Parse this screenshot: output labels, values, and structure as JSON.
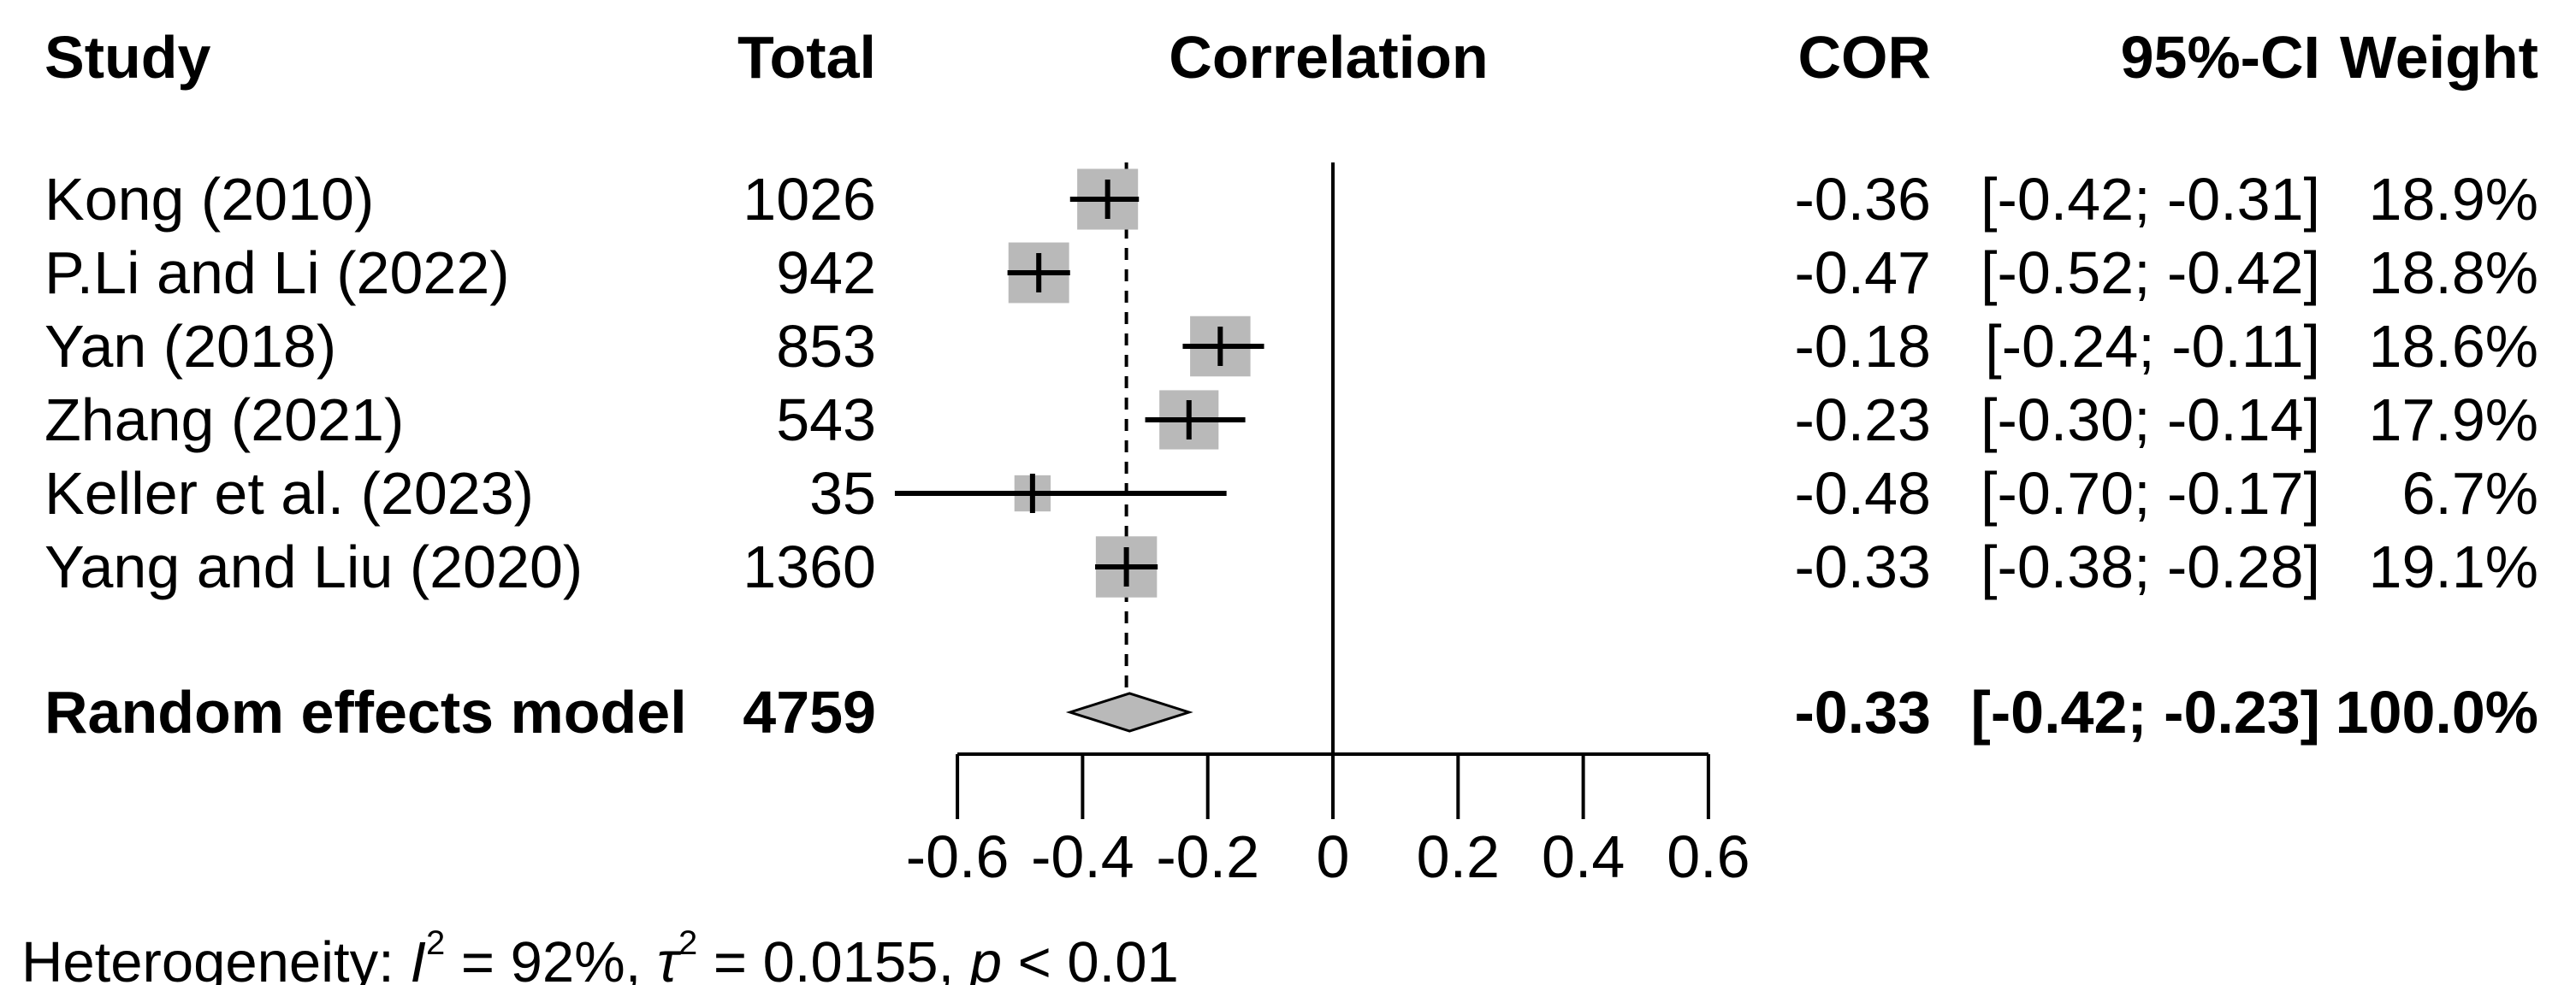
{
  "header": {
    "study": "Study",
    "total": "Total",
    "correlation": "Correlation",
    "cor": "COR",
    "ci": "95%-CI",
    "weight": "Weight"
  },
  "studies": [
    {
      "name": "Kong (2010)",
      "total": "1026",
      "cor": -0.36,
      "ci_low": -0.42,
      "ci_high": -0.31,
      "cor_label": "-0.36",
      "ci_label": "[-0.42; -0.31]",
      "weight": 18.9,
      "weight_label": "18.9%"
    },
    {
      "name": "P.Li and Li (2022)",
      "total": "942",
      "cor": -0.47,
      "ci_low": -0.52,
      "ci_high": -0.42,
      "cor_label": "-0.47",
      "ci_label": "[-0.52; -0.42]",
      "weight": 18.8,
      "weight_label": "18.8%"
    },
    {
      "name": "Yan (2018)",
      "total": "853",
      "cor": -0.18,
      "ci_low": -0.24,
      "ci_high": -0.11,
      "cor_label": "-0.18",
      "ci_label": "[-0.24; -0.11]",
      "weight": 18.6,
      "weight_label": "18.6%"
    },
    {
      "name": "Zhang (2021)",
      "total": "543",
      "cor": -0.23,
      "ci_low": -0.3,
      "ci_high": -0.14,
      "cor_label": "-0.23",
      "ci_label": "[-0.30; -0.14]",
      "weight": 17.9,
      "weight_label": "17.9%"
    },
    {
      "name": "Keller et al. (2023)",
      "total": "35",
      "cor": -0.48,
      "ci_low": -0.7,
      "ci_high": -0.17,
      "cor_label": "-0.48",
      "ci_label": "[-0.70; -0.17]",
      "weight": 6.7,
      "weight_label": "6.7%"
    },
    {
      "name": "Yang and Liu (2020)",
      "total": "1360",
      "cor": -0.33,
      "ci_low": -0.38,
      "ci_high": -0.28,
      "cor_label": "-0.33",
      "ci_label": "[-0.38; -0.28]",
      "weight": 19.1,
      "weight_label": "19.1%"
    }
  ],
  "summary": {
    "name": "Random effects model",
    "total": "4759",
    "cor": -0.33,
    "ci_low": -0.42,
    "ci_high": -0.23,
    "cor_label": "-0.33",
    "ci_label": "[-0.42; -0.23]",
    "weight_label": "100.0%"
  },
  "heterogeneity": {
    "parts": [
      {
        "text": "Heterogeneity: "
      },
      {
        "text": "I",
        "style": "italic"
      },
      {
        "text": "2",
        "style": "sup"
      },
      {
        "text": " = 92%, "
      },
      {
        "text": "τ",
        "style": "italic"
      },
      {
        "text": "2",
        "style": "sup"
      },
      {
        "text": " = 0.0155, "
      },
      {
        "text": "p",
        "style": "italic"
      },
      {
        "text": " < 0.01"
      }
    ]
  },
  "axis": {
    "ticks": [
      -0.6,
      -0.4,
      -0.2,
      0,
      0.2,
      0.4,
      0.6
    ],
    "labels": [
      "-0.6",
      "-0.4",
      "-0.2",
      "0",
      "0.2",
      "0.4",
      "0.6"
    ]
  },
  "colors": {
    "square_fill": "#b9b9b9",
    "diamond_fill": "#b9b9b9",
    "line": "#000000"
  },
  "chart_data": {
    "type": "forest",
    "title": "",
    "columns": [
      "Study",
      "Total",
      "Correlation",
      "COR",
      "95%-CI",
      "Weight"
    ],
    "studies": [
      "Kong (2010)",
      "P.Li and Li (2022)",
      "Yan (2018)",
      "Zhang (2021)",
      "Keller et al. (2023)",
      "Yang and Liu (2020)"
    ],
    "totals": [
      1026,
      942,
      853,
      543,
      35,
      1360
    ],
    "cor": [
      -0.36,
      -0.47,
      -0.18,
      -0.23,
      -0.48,
      -0.33
    ],
    "ci_low": [
      -0.42,
      -0.52,
      -0.24,
      -0.3,
      -0.7,
      -0.38
    ],
    "ci_high": [
      -0.31,
      -0.42,
      -0.11,
      -0.14,
      -0.17,
      -0.28
    ],
    "weights_pct": [
      18.9,
      18.8,
      18.6,
      17.9,
      6.7,
      19.1
    ],
    "summary": {
      "label": "Random effects model",
      "total": 4759,
      "cor": -0.33,
      "ci_low": -0.42,
      "ci_high": -0.23,
      "weight_pct": 100.0
    },
    "heterogeneity": {
      "I2": "92%",
      "tau2": 0.0155,
      "p": "< 0.01"
    },
    "xlabel": "Correlation",
    "xlim": [
      -0.6,
      0.6
    ],
    "x_ticks": [
      -0.6,
      -0.4,
      -0.2,
      0,
      0.2,
      0.4,
      0.6
    ],
    "reference_line": 0,
    "pooled_dashed_line": -0.33,
    "legend": "none",
    "grid": false
  }
}
